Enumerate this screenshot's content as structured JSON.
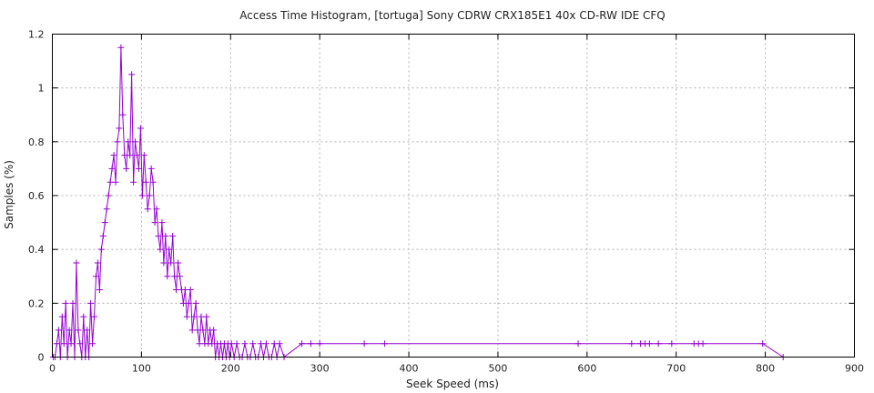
{
  "chart_data": {
    "type": "line",
    "title": "Access Time Histogram, [tortuga] Sony CDRW CRX185E1 40x CD-RW IDE CFQ",
    "xlabel": "Seek Speed (ms)",
    "ylabel": "Samples (%)",
    "xlim": [
      0,
      900
    ],
    "ylim": [
      0,
      1.2
    ],
    "xticks": [
      "0",
      "100",
      "200",
      "300",
      "400",
      "500",
      "600",
      "700",
      "800",
      "900"
    ],
    "yticks": [
      "0",
      "0.2",
      "0.4",
      "0.6",
      "0.8",
      "1",
      "1.2"
    ],
    "grid": true,
    "legend": "none",
    "series_color": "#9400d3",
    "marker": "plus",
    "series": [
      {
        "x": [
          1,
          3,
          5,
          7,
          9,
          11,
          13,
          15,
          17,
          19,
          21,
          23,
          25,
          27,
          29,
          31,
          33,
          35,
          37,
          39,
          41,
          43,
          45,
          47,
          49,
          51,
          53,
          55,
          57,
          59,
          61,
          63,
          65,
          67,
          69,
          71,
          73,
          75,
          77,
          79,
          81,
          83,
          85,
          87,
          89,
          91,
          93,
          95,
          97,
          99,
          101,
          103,
          105,
          107,
          109,
          111,
          113,
          115,
          117,
          119,
          121,
          123,
          125,
          127,
          129,
          131,
          133,
          135,
          137,
          139,
          141,
          143,
          145,
          147,
          149,
          151,
          153,
          155,
          157,
          159,
          161,
          163,
          165,
          167,
          169,
          171,
          173,
          175,
          177,
          179,
          181,
          183,
          185,
          187,
          189,
          191,
          193,
          195,
          197,
          199,
          201,
          204,
          207,
          210,
          213,
          216,
          219,
          222,
          225,
          228,
          231,
          234,
          237,
          240,
          243,
          246,
          249,
          252,
          255,
          260,
          280,
          290,
          300,
          350,
          373,
          590,
          650,
          660,
          665,
          670,
          680,
          695,
          720,
          725,
          730,
          797,
          820
        ],
        "y": [
          0,
          0,
          0.05,
          0.1,
          0,
          0.15,
          0.05,
          0.2,
          0,
          0.1,
          0.05,
          0.2,
          0,
          0.35,
          0.1,
          0.05,
          0,
          0.15,
          0,
          0.1,
          0,
          0.2,
          0.05,
          0.15,
          0.3,
          0.35,
          0.25,
          0.4,
          0.45,
          0.5,
          0.55,
          0.6,
          0.65,
          0.7,
          0.75,
          0.65,
          0.8,
          0.85,
          1.15,
          0.9,
          0.75,
          0.7,
          0.8,
          0.75,
          1.05,
          0.65,
          0.8,
          0.75,
          0.7,
          0.85,
          0.6,
          0.75,
          0.65,
          0.55,
          0.6,
          0.7,
          0.65,
          0.5,
          0.55,
          0.45,
          0.4,
          0.5,
          0.35,
          0.45,
          0.3,
          0.4,
          0.35,
          0.45,
          0.3,
          0.25,
          0.35,
          0.3,
          0.25,
          0.2,
          0.25,
          0.15,
          0.2,
          0.25,
          0.1,
          0.15,
          0.2,
          0.1,
          0.05,
          0.15,
          0.1,
          0.05,
          0.15,
          0.05,
          0.1,
          0.05,
          0.1,
          0,
          0.05,
          0,
          0.05,
          0,
          0.05,
          0,
          0.05,
          0,
          0.05,
          0,
          0.05,
          0,
          0,
          0.05,
          0,
          0,
          0.05,
          0,
          0,
          0.05,
          0,
          0.05,
          0,
          0,
          0.05,
          0,
          0.05,
          0,
          0.05,
          0.05,
          0.05,
          0.05,
          0.05,
          0.05,
          0.05,
          0.05,
          0.05,
          0.05,
          0.05,
          0.05,
          0.05,
          0.05,
          0.05,
          0.05,
          0
        ]
      }
    ]
  }
}
